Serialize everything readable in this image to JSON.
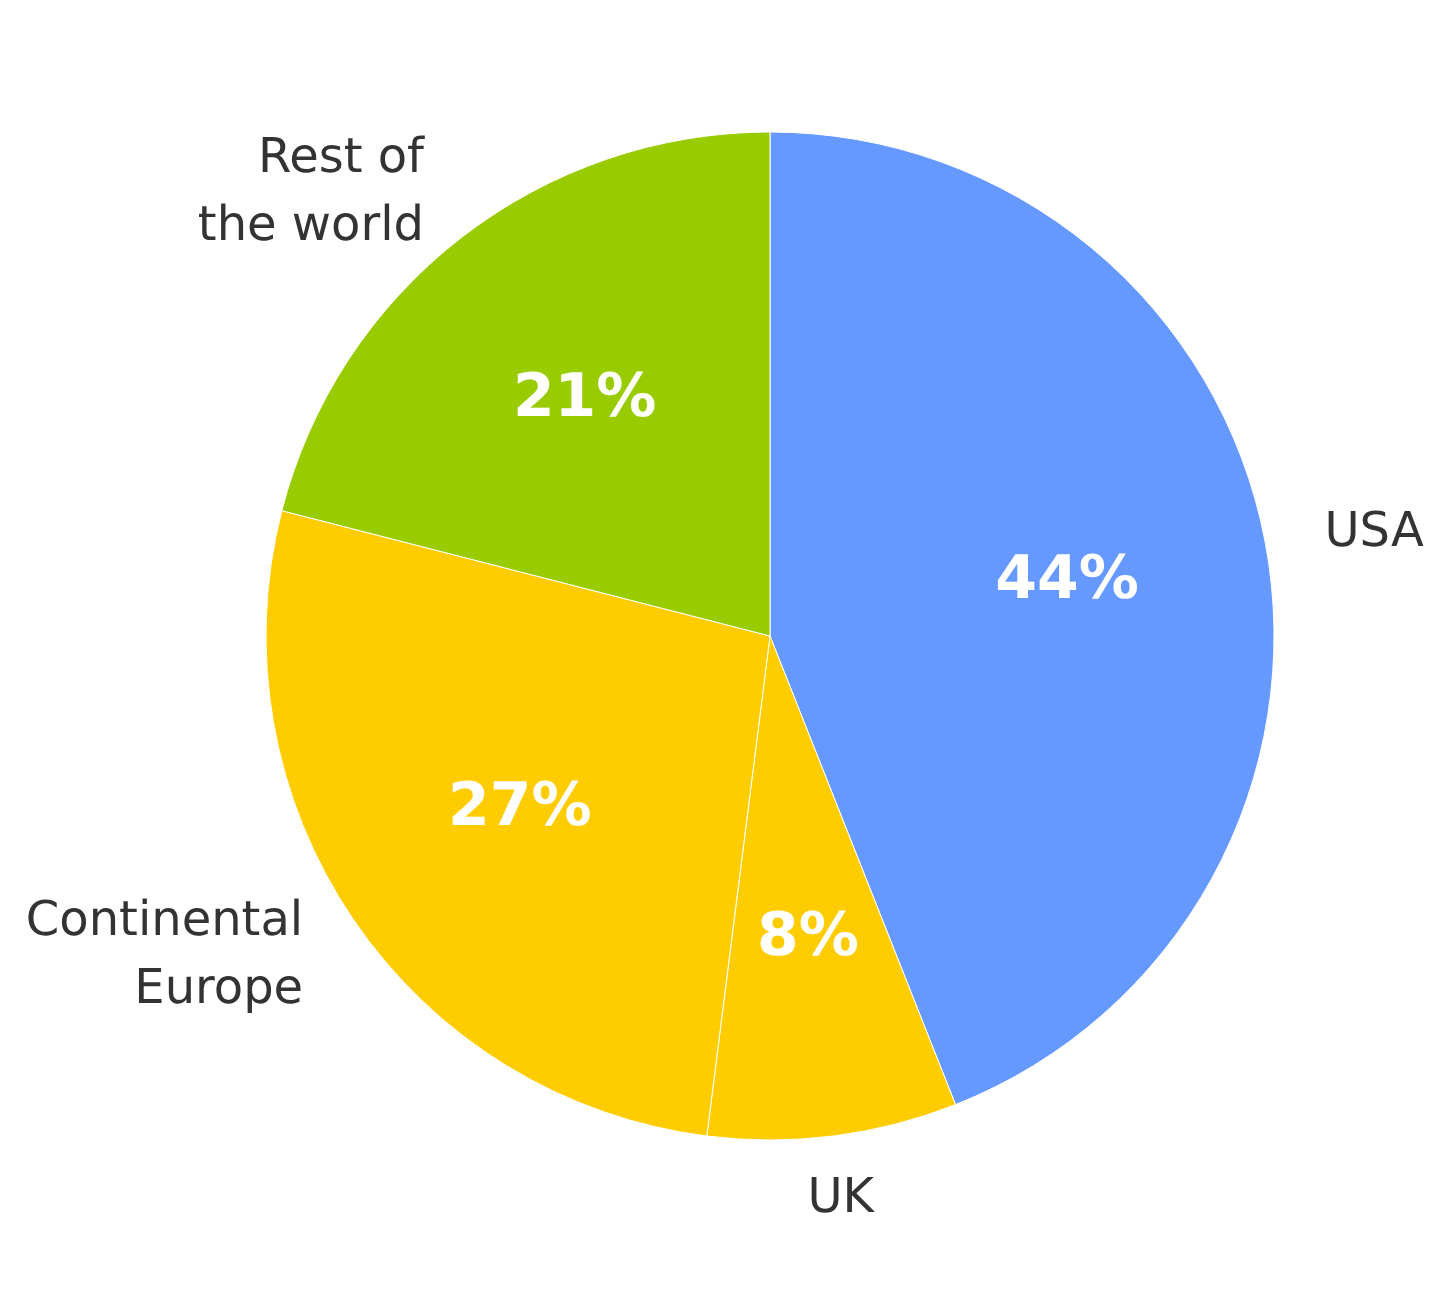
{
  "chart_data": {
    "type": "pie",
    "categories": [
      "USA",
      "UK",
      "Continental Europe",
      "Rest of the world"
    ],
    "values": [
      44,
      8,
      27,
      21
    ],
    "colors": [
      "#6699ff",
      "#ffcc00",
      "#ffcc00",
      "#99cc00"
    ],
    "value_labels": [
      "44%",
      "8%",
      "27%",
      "21%"
    ]
  }
}
